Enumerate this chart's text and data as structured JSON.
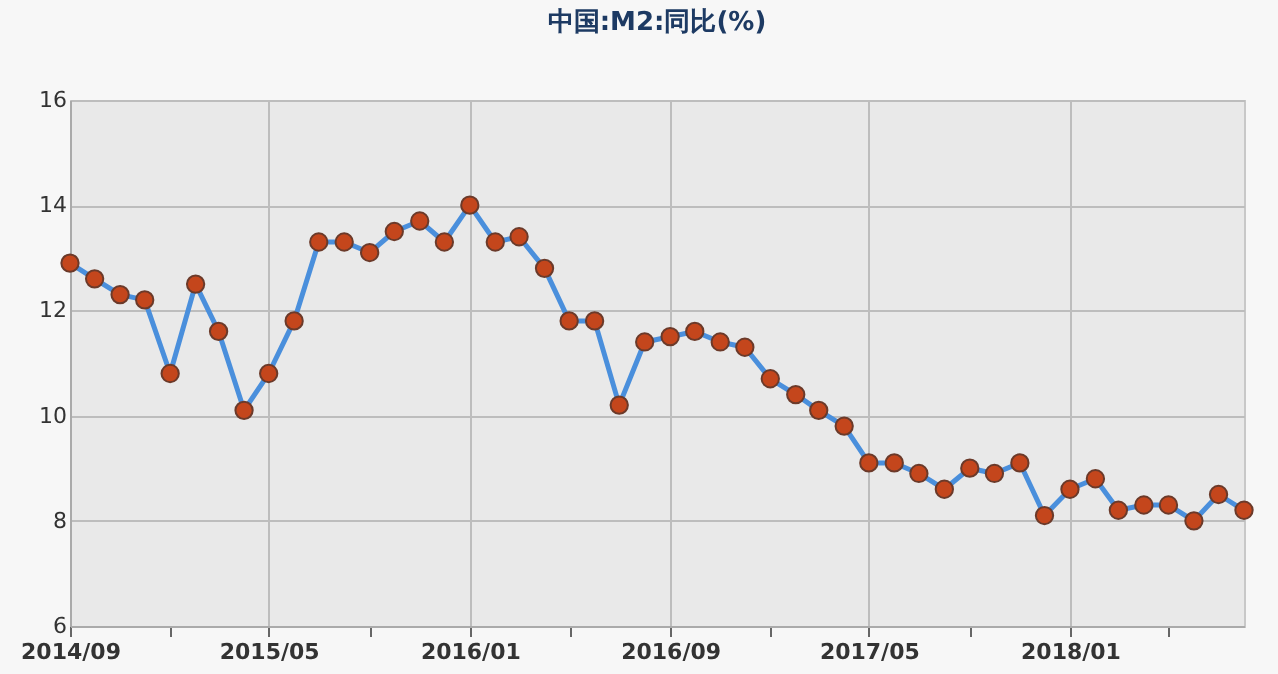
{
  "chart_data": {
    "type": "line",
    "title": "中国:M2:同比(%)",
    "x": [
      "2014-09",
      "2014-10",
      "2014-11",
      "2014-12",
      "2015-01",
      "2015-02",
      "2015-03",
      "2015-04",
      "2015-05",
      "2015-06",
      "2015-07",
      "2015-08",
      "2015-09",
      "2015-10",
      "2015-11",
      "2015-12",
      "2016-01",
      "2016-02",
      "2016-03",
      "2016-04",
      "2016-05",
      "2016-06",
      "2016-07",
      "2016-08",
      "2016-09",
      "2016-10",
      "2016-11",
      "2016-12",
      "2017-01",
      "2017-02",
      "2017-03",
      "2017-04",
      "2017-05",
      "2017-06",
      "2017-07",
      "2017-08",
      "2017-09",
      "2017-10",
      "2017-11",
      "2017-12",
      "2018-01",
      "2018-02",
      "2018-03",
      "2018-04",
      "2018-05",
      "2018-06",
      "2018-07",
      "2018-08"
    ],
    "series": [
      {
        "color": "#4a8fdc",
        "values": [
          12.9,
          12.6,
          12.3,
          12.2,
          10.8,
          12.5,
          11.6,
          10.1,
          10.8,
          11.8,
          13.3,
          13.3,
          13.1,
          13.5,
          13.7,
          13.3,
          14.0,
          13.3,
          13.4,
          12.8,
          11.8,
          11.8,
          10.2,
          11.4,
          11.5,
          11.6,
          11.4,
          11.3,
          10.7,
          10.4,
          10.1,
          9.8,
          9.1,
          9.1,
          8.9,
          8.6,
          9.0,
          8.9,
          9.1,
          8.1,
          8.6,
          8.8,
          8.2,
          8.3,
          8.3,
          8.0,
          8.5,
          8.2
        ]
      }
    ],
    "xlim": [
      "2014-09",
      "2018-08"
    ],
    "xticks": [
      {
        "value": "2014-09",
        "label": "2014/09"
      },
      {
        "value": "2015-01",
        "label": null
      },
      {
        "value": "2015-05",
        "label": "2015/05"
      },
      {
        "value": "2015-09",
        "label": null
      },
      {
        "value": "2016-01",
        "label": "2016/01"
      },
      {
        "value": "2016-05",
        "label": null
      },
      {
        "value": "2016-09",
        "label": "2016/09"
      },
      {
        "value": "2017-01",
        "label": null
      },
      {
        "value": "2017-05",
        "label": "2017/05"
      },
      {
        "value": "2017-09",
        "label": null
      },
      {
        "value": "2018-01",
        "label": "2018/01"
      },
      {
        "value": "2018-05",
        "label": null
      }
    ],
    "ylim": [
      6,
      16
    ],
    "yticks": [
      6,
      8,
      10,
      12,
      14,
      16
    ],
    "grid": true,
    "marker": "circle",
    "line_style": "solid"
  }
}
